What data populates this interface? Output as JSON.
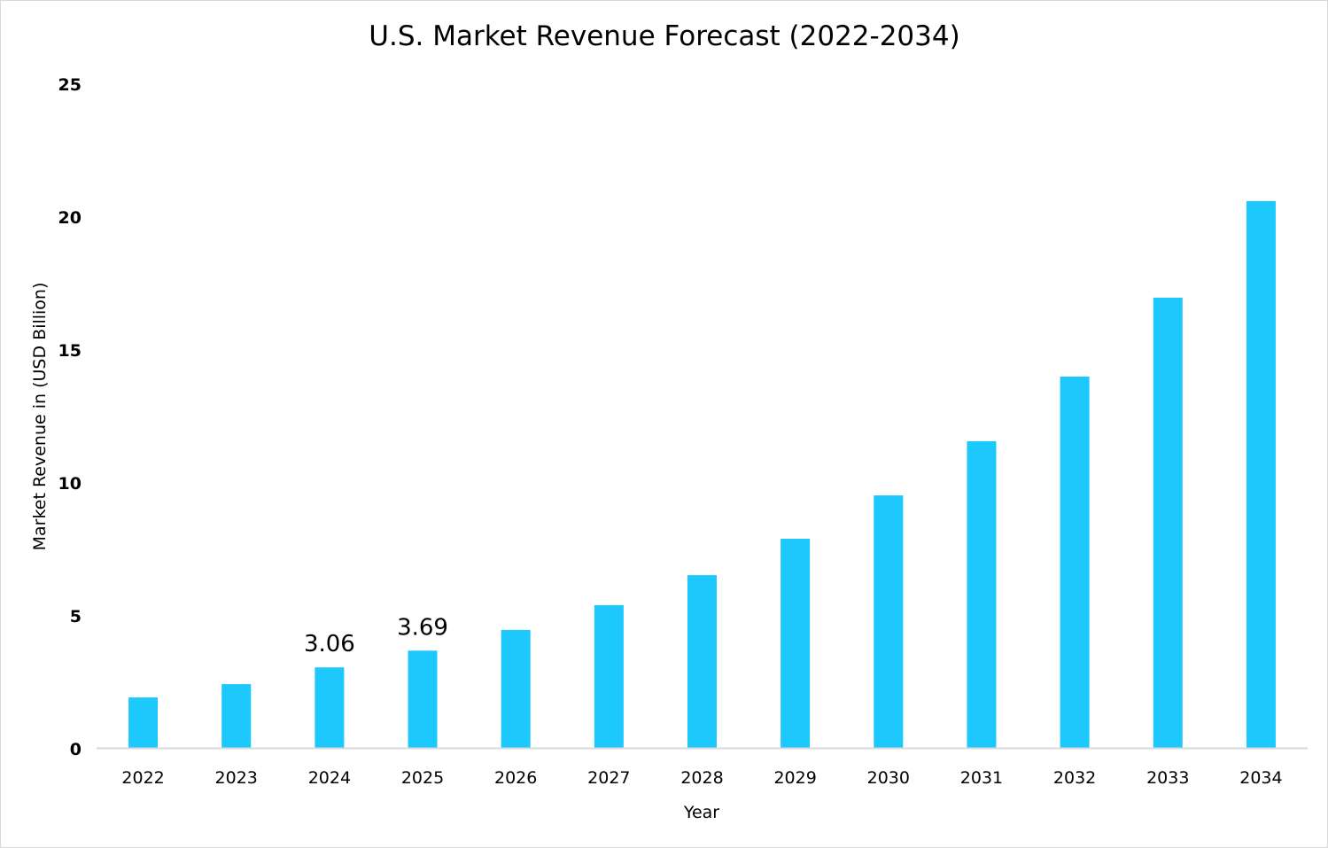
{
  "chart_data": {
    "type": "bar",
    "title": "U.S. Market Revenue Forecast (2022-2034)",
    "xlabel": "Year",
    "ylabel": "Market Revenue in (USD Billion)",
    "categories": [
      "2022",
      "2023",
      "2024",
      "2025",
      "2026",
      "2027",
      "2028",
      "2029",
      "2030",
      "2031",
      "2032",
      "2033",
      "2034"
    ],
    "values": [
      1.93,
      2.43,
      3.06,
      3.69,
      4.47,
      5.4,
      6.53,
      7.9,
      9.53,
      11.57,
      14.0,
      16.97,
      20.6
    ],
    "data_labels": {
      "2024": "3.06",
      "2025": "3.69"
    },
    "ylim": [
      0,
      25
    ],
    "yticks": [
      "0",
      "5",
      "10",
      "15",
      "20",
      "25"
    ],
    "grid": false,
    "legend": "none",
    "bar_color": "#1CC8FC"
  }
}
